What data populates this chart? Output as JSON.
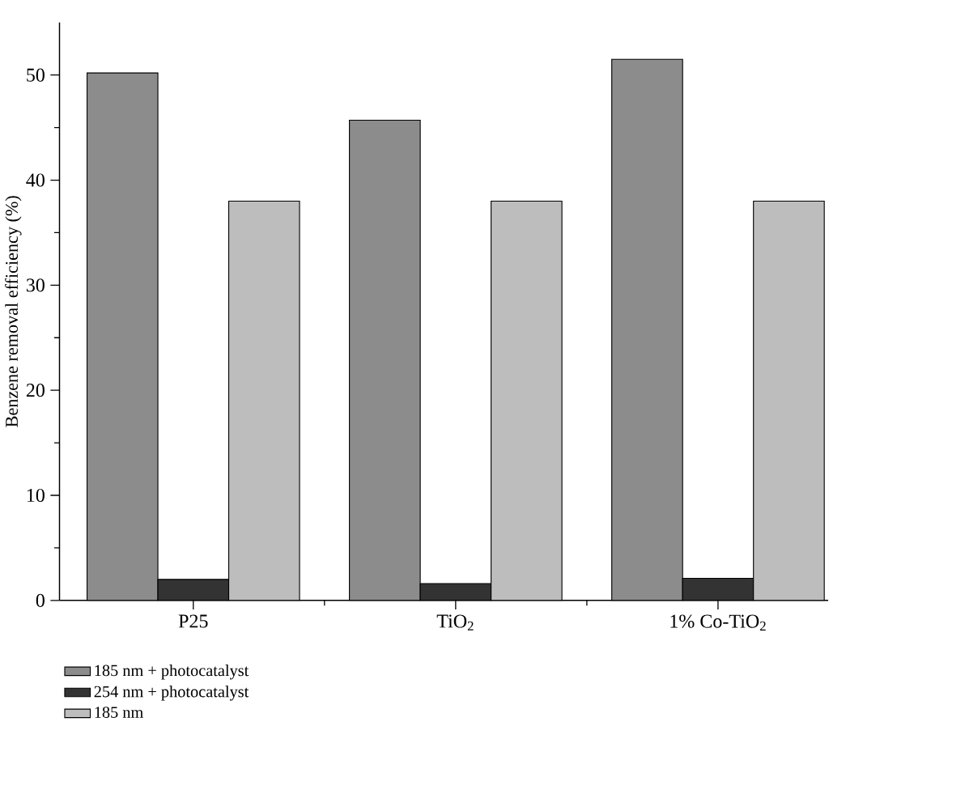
{
  "chart_data": {
    "type": "bar",
    "ylabel": "Benzene removal efficiency (%)",
    "categories": [
      "P25",
      "TiO$_{2}$",
      "1% Co-TiO$_{2}$"
    ],
    "series": [
      {
        "name": "185 nm + photocatalyst",
        "color": "#8c8c8c",
        "values": [
          50.2,
          45.7,
          51.5
        ]
      },
      {
        "name": "254 nm + photocatalyst",
        "color": "#333333",
        "values": [
          2.0,
          1.6,
          2.1
        ]
      },
      {
        "name": "185 nm",
        "color": "#bdbdbd",
        "values": [
          38.0,
          38.0,
          38.0
        ]
      }
    ],
    "ylim": [
      0,
      55
    ],
    "yticks": [
      0,
      10,
      20,
      30,
      40,
      50
    ],
    "grid": false,
    "legend": "bottom"
  }
}
